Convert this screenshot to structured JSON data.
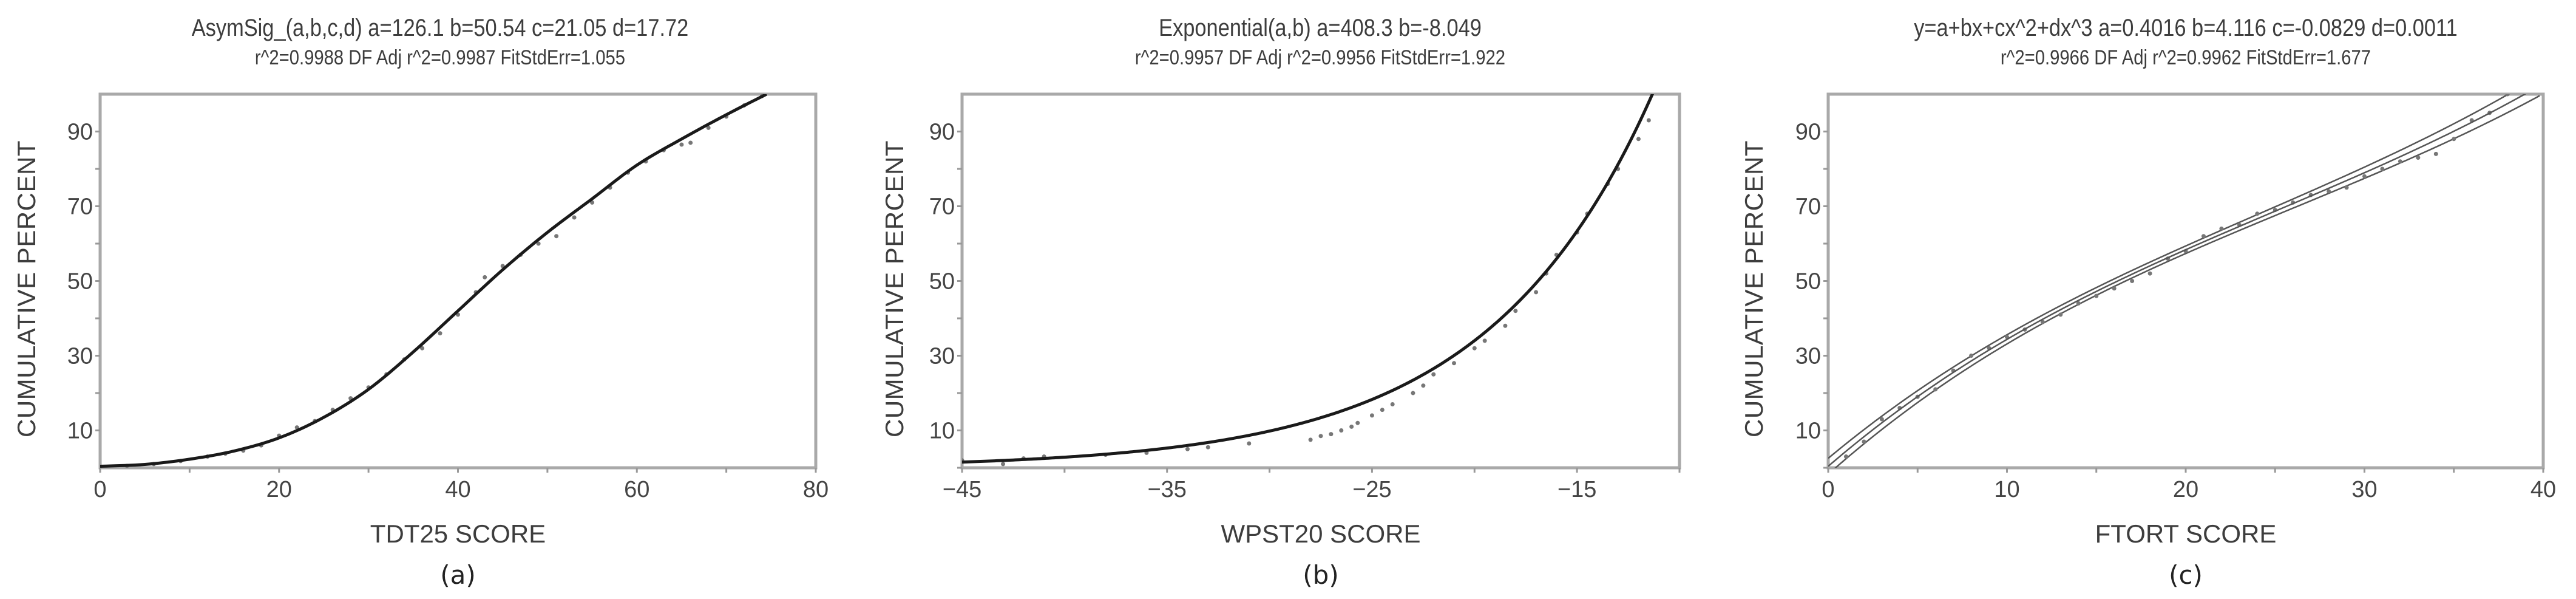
{
  "chart_data": [
    {
      "id": "a",
      "type": "scatter",
      "panel_label": "(a)",
      "title": "AsymSig_(a,b,c,d) a=126.1 b=50.54 c=21.05 d=17.72",
      "subtitle": "r^2=0.9988  DF Adj r^2=0.9987  FitStdErr=1.055",
      "xlabel": "TDT25 SCORE",
      "ylabel": "CUMULATIVE PERCENT",
      "xlim": [
        0,
        80
      ],
      "ylim": [
        0,
        100
      ],
      "xticks": [
        0,
        20,
        40,
        60,
        80
      ],
      "xminor": [
        10,
        30,
        50,
        70
      ],
      "yticks": [
        10,
        30,
        50,
        70,
        90
      ],
      "yminor": [
        20,
        40,
        60,
        80
      ],
      "grid": false,
      "fit": {
        "model": "AsymSig",
        "params": {
          "a": 126.1,
          "b": 50.54,
          "c": 21.05,
          "d": 17.72
        },
        "r2": 0.9988,
        "adj_r2": 0.9987,
        "fit_std_err": 1.055,
        "curve": [
          [
            0,
            0.4
          ],
          [
            5,
            0.9
          ],
          [
            10,
            2.3
          ],
          [
            15,
            4.5
          ],
          [
            20,
            8
          ],
          [
            25,
            13.5
          ],
          [
            30,
            21
          ],
          [
            35,
            31
          ],
          [
            40,
            42
          ],
          [
            45,
            53
          ],
          [
            50,
            63
          ],
          [
            55,
            72
          ],
          [
            60,
            81
          ],
          [
            65,
            88
          ],
          [
            70,
            94.5
          ],
          [
            74.5,
            100
          ]
        ]
      },
      "points": [
        [
          3,
          0.5
        ],
        [
          6,
          1
        ],
        [
          9,
          1.8
        ],
        [
          12,
          3
        ],
        [
          14,
          3.8
        ],
        [
          16,
          4.6
        ],
        [
          18,
          6
        ],
        [
          20,
          8.6
        ],
        [
          22,
          10.8
        ],
        [
          24,
          12.5
        ],
        [
          26,
          15.5
        ],
        [
          28,
          18.6
        ],
        [
          30,
          21.5
        ],
        [
          32,
          25
        ],
        [
          34,
          29
        ],
        [
          36,
          32
        ],
        [
          38,
          36
        ],
        [
          40,
          41
        ],
        [
          42,
          47
        ],
        [
          43,
          51
        ],
        [
          45,
          54
        ],
        [
          47,
          57
        ],
        [
          49,
          60
        ],
        [
          51,
          62
        ],
        [
          53,
          67
        ],
        [
          55,
          71
        ],
        [
          57,
          75
        ],
        [
          59,
          79
        ],
        [
          61,
          82
        ],
        [
          63,
          85
        ],
        [
          65,
          86.5
        ],
        [
          66,
          87
        ],
        [
          68,
          91
        ],
        [
          70,
          94
        ],
        [
          72,
          97
        ],
        [
          74,
          99.5
        ]
      ]
    },
    {
      "id": "b",
      "type": "scatter",
      "panel_label": "(b)",
      "title": "Exponential(a,b) a=408.3 b=-8.049",
      "subtitle": "r^2=0.9957  DF Adj r^2=0.9956  FitStdErr=1.922",
      "xlabel": "WPST20  SCORE",
      "ylabel": "CUMULATIVE PERCENT",
      "xlim": [
        -45,
        -10
      ],
      "ylim": [
        0,
        100
      ],
      "xticks": [
        -45,
        -35,
        -25,
        -15
      ],
      "xtick_labels": [
        "−45",
        "−35",
        "−25",
        "−15"
      ],
      "xminor": [
        -40,
        -30,
        -20,
        -10
      ],
      "yticks": [
        10,
        30,
        50,
        70,
        90
      ],
      "yminor": [
        0,
        20,
        40,
        60,
        80
      ],
      "grid": false,
      "fit": {
        "model": "Exponential",
        "formula": "y = a*exp(-x/b)",
        "params": {
          "a": 408.3,
          "b": -8.049
        },
        "r2": 0.9957,
        "adj_r2": 0.9956,
        "fit_std_err": 1.922
      },
      "points": [
        [
          -45,
          2
        ],
        [
          -43,
          1
        ],
        [
          -42,
          2.5
        ],
        [
          -41,
          3
        ],
        [
          -38,
          3.5
        ],
        [
          -36,
          4
        ],
        [
          -34,
          5
        ],
        [
          -33,
          5.5
        ],
        [
          -31,
          6.5
        ],
        [
          -28,
          7.5
        ],
        [
          -27.5,
          8.5
        ],
        [
          -27,
          9
        ],
        [
          -26.5,
          10
        ],
        [
          -26,
          11
        ],
        [
          -25.7,
          12
        ],
        [
          -25,
          14
        ],
        [
          -24.5,
          15.5
        ],
        [
          -24,
          17
        ],
        [
          -23,
          20
        ],
        [
          -22.5,
          22
        ],
        [
          -22,
          25
        ],
        [
          -21,
          28
        ],
        [
          -20,
          32
        ],
        [
          -19.5,
          34
        ],
        [
          -18.5,
          38
        ],
        [
          -18,
          42
        ],
        [
          -17,
          47
        ],
        [
          -16.5,
          52
        ],
        [
          -16,
          57
        ],
        [
          -15,
          63
        ],
        [
          -14.5,
          68
        ],
        [
          -13.5,
          76
        ],
        [
          -13,
          80
        ],
        [
          -12,
          88
        ],
        [
          -11.5,
          93
        ]
      ]
    },
    {
      "id": "c",
      "type": "scatter",
      "panel_label": "(c)",
      "title": "y=a+bx+cx^2+dx^3 a=0.4016 b=4.116 c=-0.0829 d=0.0011",
      "subtitle": "r^2=0.9966  DF Adj r^2=0.9962  FitStdErr=1.677",
      "xlabel": "FTORT SCORE",
      "ylabel": "CUMULATIVE PERCENT",
      "xlim": [
        0,
        40
      ],
      "ylim": [
        0,
        100
      ],
      "xticks": [
        0,
        10,
        20,
        30,
        40
      ],
      "xminor": [
        5,
        15,
        25,
        35
      ],
      "yticks": [
        10,
        30,
        50,
        70,
        90
      ],
      "yminor": [
        0,
        20,
        40,
        60,
        80
      ],
      "grid": false,
      "fit": {
        "model": "Cubic polynomial",
        "params": {
          "a": 0.4016,
          "b": 4.116,
          "c": -0.0829,
          "d": 0.0011
        },
        "r2": 0.9966,
        "adj_r2": 0.9962,
        "fit_std_err": 1.677,
        "confidence_band": true
      },
      "points": [
        [
          1,
          3
        ],
        [
          2,
          7
        ],
        [
          3,
          13
        ],
        [
          4,
          16
        ],
        [
          5,
          19
        ],
        [
          6,
          21
        ],
        [
          7,
          26
        ],
        [
          8,
          30
        ],
        [
          9,
          32
        ],
        [
          10,
          35
        ],
        [
          11,
          37
        ],
        [
          12,
          39
        ],
        [
          13,
          41
        ],
        [
          14,
          44
        ],
        [
          15,
          46
        ],
        [
          16,
          48
        ],
        [
          17,
          50
        ],
        [
          18,
          52
        ],
        [
          19,
          56
        ],
        [
          20,
          58
        ],
        [
          21,
          62
        ],
        [
          22,
          64
        ],
        [
          23,
          65
        ],
        [
          24,
          68
        ],
        [
          25,
          69
        ],
        [
          26,
          71
        ],
        [
          27,
          73
        ],
        [
          28,
          74
        ],
        [
          29,
          75
        ],
        [
          30,
          78
        ],
        [
          31,
          80
        ],
        [
          32,
          82
        ],
        [
          33,
          83
        ],
        [
          34,
          84
        ],
        [
          35,
          88
        ],
        [
          36,
          93
        ],
        [
          37,
          95
        ],
        [
          38,
          100
        ]
      ]
    }
  ]
}
